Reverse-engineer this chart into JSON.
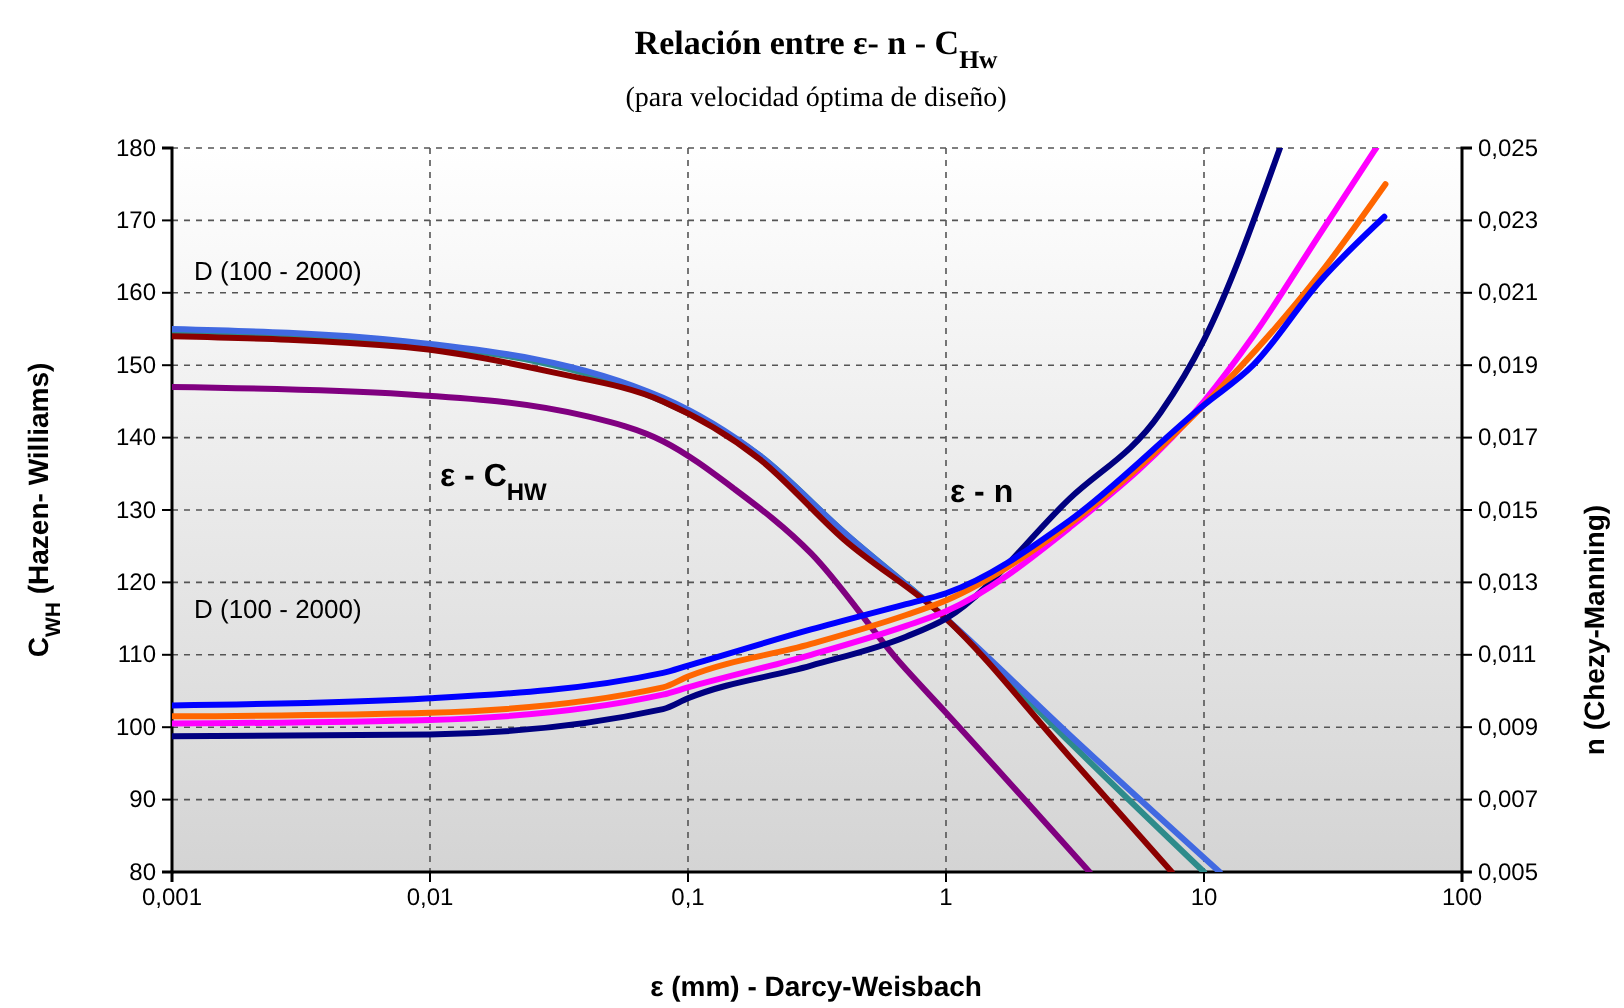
{
  "chart_data": {
    "type": "line",
    "title": "Relación entre ε- n - C$_{Hw}$",
    "subtitle": "(para velocidad óptima de diseño)",
    "xlabel": "ε (mm) - Darcy-Weisbach",
    "ylabel": "C$_{WH}$ (Hazen- Williams)",
    "y2label": "n (Chezy-Manning)",
    "log": "x",
    "grid": true,
    "marker": "none",
    "line_style": "solid",
    "xlim": [
      0.001,
      100
    ],
    "xticks": [
      {
        "value": 0.001,
        "label": "0,001"
      },
      {
        "value": 0.01,
        "label": "0,01"
      },
      {
        "value": 0.1,
        "label": "0,1"
      },
      {
        "value": 1,
        "label": "1"
      },
      {
        "value": 10,
        "label": "10"
      },
      {
        "value": 100,
        "label": "100"
      }
    ],
    "ylim": [
      80,
      180
    ],
    "yticks": [
      80,
      90,
      100,
      110,
      120,
      130,
      140,
      150,
      160,
      170,
      180
    ],
    "y2lim": [
      0.005,
      0.025
    ],
    "y2ticks": [
      {
        "value": 0.005,
        "label": "0,005"
      },
      {
        "value": 0.007,
        "label": "0,007"
      },
      {
        "value": 0.009,
        "label": "0,009"
      },
      {
        "value": 0.011,
        "label": "0,011"
      },
      {
        "value": 0.013,
        "label": "0,013"
      },
      {
        "value": 0.015,
        "label": "0,015"
      },
      {
        "value": 0.017,
        "label": "0,017"
      },
      {
        "value": 0.019,
        "label": "0,019"
      },
      {
        "value": 0.021,
        "label": "0,021"
      },
      {
        "value": 0.023,
        "label": "0,023"
      },
      {
        "value": 0.025,
        "label": "0,025"
      }
    ],
    "series": [
      {
        "color": "#800080",
        "x": [
          0.001,
          0.008,
          0.04,
          0.08,
          0.15,
          0.3,
          0.66,
          1,
          3.6
        ],
        "values": [
          147,
          146,
          143,
          139.5,
          133,
          124,
          109,
          102,
          80
        ]
      },
      {
        "color": "#2e8b8b",
        "x": [
          0.001,
          0.008,
          0.08,
          0.19,
          0.4,
          1,
          3,
          10
        ],
        "values": [
          154.5,
          153,
          145,
          137.5,
          127,
          115,
          98,
          80
        ]
      },
      {
        "color": "#4169e1",
        "x": [
          0.001,
          0.008,
          0.08,
          0.19,
          0.4,
          1,
          3,
          11.5
        ],
        "values": [
          155,
          153.3,
          145.5,
          137.5,
          127,
          115,
          99,
          80
        ]
      },
      {
        "color": "#8b0000",
        "x": [
          0.001,
          0.008,
          0.03,
          0.08,
          0.19,
          0.4,
          1,
          3,
          7.5
        ],
        "values": [
          154,
          152.5,
          149,
          145,
          137,
          126,
          115,
          96,
          80
        ]
      },
      {
        "color": "#000080",
        "axis": "y2",
        "x": [
          0.001,
          0.01,
          0.08,
          0.1,
          0.3,
          0.7,
          1,
          3,
          6.8,
          10,
          19.7
        ],
        "values": [
          0.00875,
          0.0088,
          0.0095,
          0.0098,
          0.0107,
          0.0115,
          0.012,
          0.0153,
          0.0177,
          0.0197,
          0.025
        ]
      },
      {
        "color": "#ff00ff",
        "axis": "y2",
        "x": [
          0.001,
          0.01,
          0.08,
          0.1,
          0.3,
          0.7,
          1,
          3,
          10,
          15.5,
          28,
          46.5
        ],
        "values": [
          0.0091,
          0.0092,
          0.0099,
          0.0101,
          0.011,
          0.0118,
          0.0122,
          0.0145,
          0.018,
          0.0198,
          0.0226,
          0.025
        ]
      },
      {
        "color": "#ff6600",
        "axis": "y2",
        "x": [
          0.001,
          0.01,
          0.08,
          0.1,
          0.3,
          0.7,
          1,
          3,
          10,
          28,
          50.5
        ],
        "values": [
          0.0093,
          0.0094,
          0.0101,
          0.0104,
          0.0113,
          0.0121,
          0.0125,
          0.0146,
          0.0179,
          0.0215,
          0.024
        ]
      },
      {
        "color": "#0000ff",
        "axis": "y2",
        "x": [
          0.001,
          0.01,
          0.08,
          0.1,
          0.3,
          0.7,
          1,
          3,
          10,
          15.5,
          28,
          50
        ],
        "values": [
          0.0096,
          0.0098,
          0.0105,
          0.0107,
          0.0117,
          0.0124,
          0.0127,
          0.0147,
          0.0179,
          0.019,
          0.0213,
          0.0231
        ]
      }
    ],
    "annotations": [
      "D (100 - 2000)",
      "ε - C$_{HW}$",
      "ε - n",
      "D (100 - 2000)"
    ]
  }
}
